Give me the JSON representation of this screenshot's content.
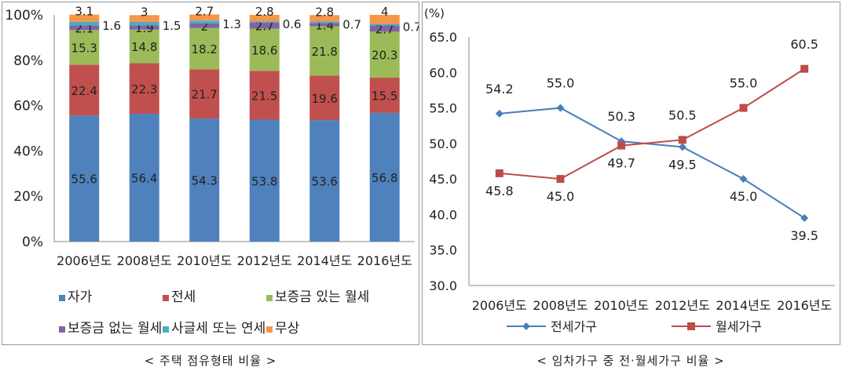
{
  "captions": {
    "left": "< 주택 점유형태 비율 >",
    "right": "< 임차가구 중 전·월세가구 비율 >"
  },
  "chart_data": [
    {
      "type": "bar",
      "stacked": true,
      "percent": true,
      "categories": [
        "2006년도",
        "2008년도",
        "2010년도",
        "2012년도",
        "2014년도",
        "2016년도"
      ],
      "y_ticks": [
        "0%",
        "20%",
        "40%",
        "60%",
        "80%",
        "100%"
      ],
      "ylim": [
        0,
        100
      ],
      "legend_position": "bottom",
      "series": [
        {
          "name": "자가",
          "color": "#4f81bd",
          "values": [
            55.6,
            56.4,
            54.3,
            53.8,
            53.6,
            56.8
          ]
        },
        {
          "name": "전세",
          "color": "#c0504d",
          "values": [
            22.4,
            22.3,
            21.7,
            21.5,
            19.6,
            15.5
          ]
        },
        {
          "name": "보증금 있는 월세",
          "color": "#9bbb59",
          "values": [
            15.3,
            14.8,
            18.2,
            18.6,
            21.8,
            20.3
          ]
        },
        {
          "name": "보증금 없는 월세",
          "color": "#8064a2",
          "values": [
            2.1,
            1.9,
            2.0,
            2.7,
            1.4,
            2.7
          ]
        },
        {
          "name": "사글세 또는 연세",
          "color": "#4bacc6",
          "values": [
            1.6,
            1.5,
            1.3,
            0.6,
            0.7,
            0.7
          ]
        },
        {
          "name": "무상",
          "color": "#f79646",
          "values": [
            3.1,
            3.0,
            2.7,
            2.8,
            2.8,
            4.0
          ]
        }
      ]
    },
    {
      "type": "line",
      "unit_label": "(%)",
      "categories": [
        "2006년도",
        "2008년도",
        "2010년도",
        "2012년도",
        "2014년도",
        "2016년도"
      ],
      "y_ticks": [
        "30.0",
        "35.0",
        "40.0",
        "45.0",
        "50.0",
        "55.0",
        "60.0",
        "65.0"
      ],
      "ylim": [
        30,
        65
      ],
      "legend_position": "bottom",
      "series": [
        {
          "name": "전세가구",
          "color": "#4a7ebb",
          "marker": "diamond",
          "values": [
            54.2,
            55.0,
            50.3,
            49.5,
            45.0,
            39.5
          ]
        },
        {
          "name": "월세가구",
          "color": "#be4b48",
          "marker": "square",
          "values": [
            45.8,
            45.0,
            49.7,
            50.5,
            55.0,
            60.5
          ]
        }
      ]
    }
  ]
}
